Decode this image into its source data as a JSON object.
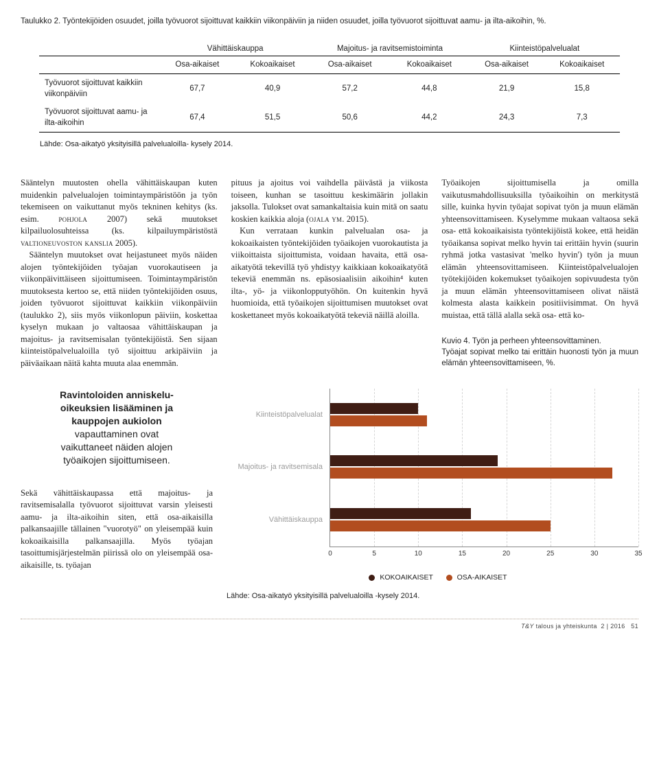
{
  "table": {
    "caption": "Taulukko 2. Työntekijöiden osuudet, joilla työvuorot sijoittuvat kaikkiin viikonpäiviin ja niiden osuudet, joilla työvuorot sijoittuvat aamu- ja ilta-aikoihin, %.",
    "group_headers": [
      "Vähittäiskauppa",
      "Majoitus- ja ravitsemistoiminta",
      "Kiinteistöpalvelualat"
    ],
    "sub_headers": [
      "Osa-aikaiset",
      "Kokoaikaiset",
      "Osa-aikaiset",
      "Kokoaikaiset",
      "Osa-aikaiset",
      "Kokoaikaiset"
    ],
    "rows": [
      {
        "label": "Työvuorot sijoittuvat kaikkiin viikonpäiviin",
        "values": [
          "67,7",
          "40,9",
          "57,2",
          "44,8",
          "21,9",
          "15,8"
        ]
      },
      {
        "label": "Työvuorot sijoittuvat aamu- ja ilta-aikoihin",
        "values": [
          "67,4",
          "51,5",
          "50,6",
          "44,2",
          "24,3",
          "7,3"
        ]
      }
    ],
    "source": "Lähde: Osa-aikatyö yksityisillä palvelualoilla- kysely 2014."
  },
  "body": {
    "col1": [
      "Sääntelyn muutosten ohella vähittäiskaupan kuten muidenkin palvelualojen toimintaympäristöön ja työn tekemiseen on vaikuttanut myös tekninen kehitys (ks. esim. POHJOLA 2007) sekä muutokset kilpailuolosuhteissa (ks. kilpailuympäristöstä VALTIONEUVOSTON KANSLIA 2005).",
      "Sääntelyn muutokset ovat heijastuneet myös näiden alojen työntekijöiden työajan vuorokautiseen ja viikonpäivittäiseen sijoittumiseen. Toimintaympäristön muutoksesta kertoo se, että niiden työntekijöiden osuus, joiden työvuorot sijoittuvat kaikkiin viikonpäiviin (taulukko 2), siis myös viikonlopun päiviin, koskettaa kyselyn mukaan jo valtaosaa vähittäiskaupan ja majoitus- ja ravitsemisalan työntekijöistä. Sen sijaan kiinteistöpalvelualoilla työ sijoittuu arkipäiviin ja päiväaikaan näitä kahta muuta alaa enemmän."
    ],
    "col2": [
      "pituus ja ajoitus voi vaihdella päivästä ja viikosta toiseen, kunhan se tasoittuu keskimäärin jollakin jaksolla. Tulokset ovat samankaltaisia kuin mitä on saatu koskien kaikkia aloja (OJALA YM. 2015).",
      "Kun verrataan kunkin palvelualan osa- ja kokoaikaisten työntekijöiden työaikojen vuorokautista ja viikoittaista sijoittumista, voidaan havaita, että osa-aikatyötä tekevillä työ yhdistyy kaikkiaan kokoaikatyötä tekeviä enemmän ns. epäsosiaalisiin aikoihin⁴ kuten ilta-, yö- ja viikonlopputyöhön. On kuitenkin hyvä huomioida, että työaikojen sijoittumisen muutokset ovat koskettaneet myös kokoaikatyötä tekeviä näillä aloilla."
    ],
    "col3": [
      "Työaikojen sijoittumisella ja omilla vaikutusmahdollisuuksilla työaikoihin on merkitystä sille, kuinka hyvin työajat sopivat työn ja muun elämän yhteensovittamiseen. Kyselymme mukaan valtaosa sekä osa- että kokoaikaisista työntekijöistä kokee, että heidän työaikansa sopivat melko hyvin tai erittäin hyvin (suurin ryhmä jotka vastasivat 'melko hyvin') työn ja muun elämän yhteensovittamiseen. Kiinteistöpalvelualojen työtekijöiden kokemukset työaikojen sopivuudesta työn ja muun elämän yhteensovittamiseen olivat näistä kolmesta alasta kaikkein positiivisimmat. On hyvä muistaa, että tällä alalla sekä osa- että ko-"
    ]
  },
  "kuvio": {
    "title": "Kuvio 4. Työn ja perheen yhteensovittaminen.",
    "subtitle": "Työajat sopivat melko tai erittäin huonosti työn ja muun elämän yhteensovittamiseen, %."
  },
  "pull_quote": {
    "line1": "Ravintoloiden anniskelu-",
    "line2": "oikeuksien lisääminen ja",
    "line3": "kauppojen aukiolon",
    "line4": "vapauttaminen ovat",
    "line5": "vaikuttaneet näiden alojen",
    "line6": "työaikojen sijoittumiseen."
  },
  "left_body": [
    "Sekä vähittäiskaupassa että majoitus- ja ravitsemisalalla työvuorot sijoittuvat varsin yleisesti aamu- ja ilta-aikoihin siten, että osa-aikaisilla palkansaajille tällainen \"vuorotyö\" on yleisempää kuin kokoaikaisilla palkansaajilla. Myös työajan tasoittumisjärjestelmän piirissä olo on yleisempää osa-aikaisille, ts. työajan"
  ],
  "chart": {
    "type": "bar",
    "x_max": 35,
    "x_ticks": [
      0,
      5,
      10,
      15,
      20,
      25,
      30,
      35
    ],
    "categories": [
      "Kiinteistöpalvelualat",
      "Majoitus- ja ravitsemisala",
      "Vähittäiskauppa"
    ],
    "series": [
      {
        "name": "KOKOAIKAISET",
        "color": "#3f1d14",
        "values": [
          10,
          19,
          16
        ]
      },
      {
        "name": "OSA-AIKAISET",
        "color": "#b24d1f",
        "values": [
          11,
          32,
          25
        ]
      }
    ],
    "grid_color": "#d5d5d5",
    "label_color": "#9a9a9a",
    "source": "Lähde: Osa-aikatyö yksityisillä palvelualoilla -kysely 2014."
  },
  "footer": {
    "brand": "T&Y",
    "text": "talous ja yhteiskunta",
    "issue": "2 | 2016",
    "page": "51"
  }
}
